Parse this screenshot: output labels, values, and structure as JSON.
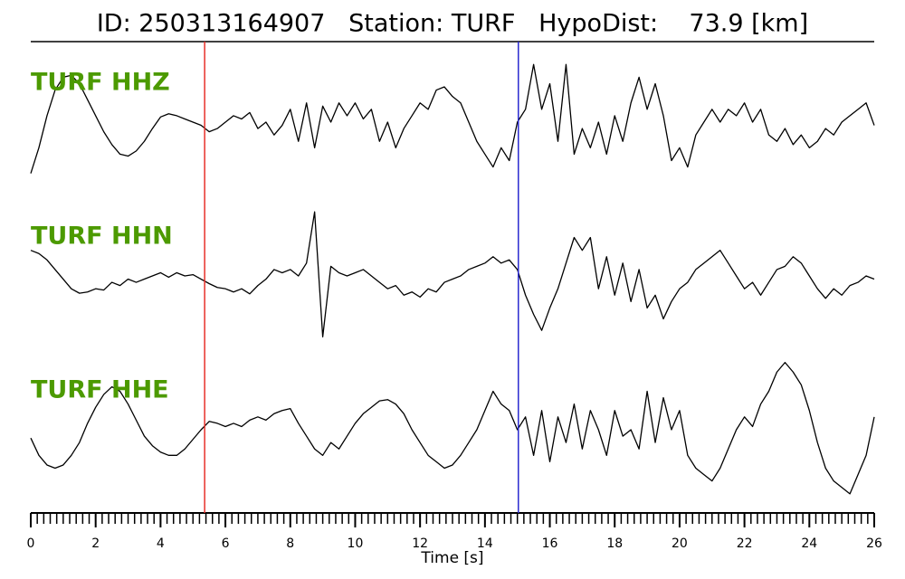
{
  "chart_data": {
    "type": "line",
    "title": "ID: 250313164907   Station: TURF   HypoDist:    73.9 [km]",
    "xlabel": "Time [s]",
    "xlim": [
      0,
      26
    ],
    "xticks": [
      0,
      2,
      4,
      6,
      8,
      10,
      12,
      14,
      16,
      18,
      20,
      22,
      24,
      26
    ],
    "xminorticks": [
      0,
      0.2,
      0.4,
      0.6,
      0.8,
      1,
      1.2,
      1.4,
      1.6,
      1.8,
      2,
      2.2,
      2.4,
      2.6,
      2.8,
      3,
      3.2,
      3.4,
      3.6,
      3.8,
      4,
      4.2,
      4.4,
      4.6,
      4.8,
      5,
      5.2,
      5.4,
      5.6,
      5.8,
      6,
      6.2,
      6.4,
      6.6,
      6.8,
      7,
      7.2,
      7.4,
      7.6,
      7.8,
      8,
      8.2,
      8.4,
      8.6,
      8.8,
      9,
      9.2,
      9.4,
      9.6,
      9.8,
      10,
      10.2,
      10.4,
      10.6,
      10.8,
      11,
      11.2,
      11.4,
      11.6,
      11.8,
      12,
      12.2,
      12.4,
      12.6,
      12.8,
      13,
      13.2,
      13.4,
      13.6,
      13.8,
      14,
      14.2,
      14.4,
      14.6,
      14.8,
      15,
      15.2,
      15.4,
      15.6,
      15.8,
      16,
      16.2,
      16.4,
      16.6,
      16.8,
      17,
      17.2,
      17.4,
      17.6,
      17.8,
      18,
      18.2,
      18.4,
      18.6,
      18.8,
      19,
      19.2,
      19.4,
      19.6,
      19.8,
      20,
      20.2,
      20.4,
      20.6,
      20.8,
      21,
      21.2,
      21.4,
      21.6,
      21.8,
      22,
      22.2,
      22.4,
      22.6,
      22.8,
      23,
      23.2,
      23.4,
      23.6,
      23.8,
      24,
      24.2,
      24.4,
      24.6,
      24.8,
      25,
      25.2,
      25.4,
      25.6,
      25.8,
      26
    ],
    "ylim": [
      -1.2,
      1.2
    ],
    "label_color": "#4c9a00",
    "markers": [
      {
        "x": 5.36,
        "color": "#e8302a"
      },
      {
        "x": 15.03,
        "color": "#2a2ad0"
      }
    ],
    "x": [
      0,
      0.25,
      0.5,
      0.75,
      1,
      1.25,
      1.5,
      1.75,
      2,
      2.25,
      2.5,
      2.75,
      3,
      3.25,
      3.5,
      3.75,
      4,
      4.25,
      4.5,
      4.75,
      5,
      5.25,
      5.5,
      5.75,
      6,
      6.25,
      6.5,
      6.75,
      7,
      7.25,
      7.5,
      7.75,
      8,
      8.25,
      8.5,
      8.75,
      9,
      9.25,
      9.5,
      9.75,
      10,
      10.25,
      10.5,
      10.75,
      11,
      11.25,
      11.5,
      11.75,
      12,
      12.25,
      12.5,
      12.75,
      13,
      13.25,
      13.5,
      13.75,
      14,
      14.25,
      14.5,
      14.75,
      15,
      15.25,
      15.5,
      15.75,
      16,
      16.25,
      16.5,
      16.75,
      17,
      17.25,
      17.5,
      17.75,
      18,
      18.25,
      18.5,
      18.75,
      19,
      19.25,
      19.5,
      19.75,
      20,
      20.25,
      20.5,
      20.75,
      21,
      21.25,
      21.5,
      21.75,
      22,
      22.25,
      22.5,
      22.75,
      23,
      23.25,
      23.5,
      23.75,
      24,
      24.25,
      24.5,
      24.75,
      25,
      25.25,
      25.5,
      25.75,
      26
    ],
    "series": [
      {
        "name": "TURF HHZ",
        "color": "#000000",
        "values": [
          -0.8,
          -0.4,
          0.1,
          0.5,
          0.7,
          0.73,
          0.6,
          0.35,
          0.1,
          -0.15,
          -0.35,
          -0.5,
          -0.53,
          -0.45,
          -0.3,
          -0.1,
          0.08,
          0.13,
          0.1,
          0.05,
          0,
          -0.05,
          -0.15,
          -0.1,
          0,
          0.1,
          0.05,
          0.15,
          -0.1,
          0,
          -0.2,
          -0.05,
          0.2,
          -0.3,
          0.3,
          -0.4,
          0.25,
          0,
          0.3,
          0.1,
          0.3,
          0.05,
          0.2,
          -0.3,
          0,
          -0.4,
          -0.1,
          0.1,
          0.3,
          0.2,
          0.5,
          0.55,
          0.4,
          0.3,
          0,
          -0.3,
          -0.5,
          -0.7,
          -0.4,
          -0.6,
          0,
          0.2,
          0.9,
          0.2,
          0.6,
          -0.3,
          0.9,
          -0.5,
          -0.1,
          -0.4,
          0,
          -0.5,
          0.1,
          -0.3,
          0.3,
          0.7,
          0.2,
          0.6,
          0.1,
          -0.6,
          -0.4,
          -0.7,
          -0.2,
          0,
          0.2,
          0,
          0.2,
          0.1,
          0.3,
          0,
          0.2,
          -0.2,
          -0.3,
          -0.1,
          -0.35,
          -0.2,
          -0.4,
          -0.3,
          -0.1,
          -0.2,
          0,
          0.1,
          0.2,
          0.3,
          -0.05
        ]
      },
      {
        "name": "TURF HHN",
        "color": "#000000",
        "values": [
          0.4,
          0.35,
          0.25,
          0.1,
          -0.05,
          -0.2,
          -0.27,
          -0.25,
          -0.2,
          -0.22,
          -0.1,
          -0.15,
          -0.05,
          -0.1,
          -0.05,
          0,
          0.05,
          -0.02,
          0.05,
          0,
          0.02,
          -0.05,
          -0.12,
          -0.18,
          -0.2,
          -0.25,
          -0.2,
          -0.28,
          -0.15,
          -0.05,
          0.1,
          0.05,
          0.1,
          0,
          0.2,
          1,
          -0.95,
          0.15,
          0.05,
          0,
          0.05,
          0.1,
          0,
          -0.1,
          -0.2,
          -0.15,
          -0.3,
          -0.25,
          -0.33,
          -0.2,
          -0.25,
          -0.1,
          -0.05,
          0,
          0.1,
          0.15,
          0.2,
          0.3,
          0.2,
          0.25,
          0.1,
          -0.3,
          -0.6,
          -0.85,
          -0.5,
          -0.2,
          0.2,
          0.6,
          0.4,
          0.6,
          -0.2,
          0.3,
          -0.3,
          0.2,
          -0.4,
          0.1,
          -0.5,
          -0.3,
          -0.67,
          -0.4,
          -0.2,
          -0.1,
          0.1,
          0.2,
          0.3,
          0.4,
          0.2,
          0,
          -0.2,
          -0.1,
          -0.3,
          -0.1,
          0.1,
          0.15,
          0.3,
          0.2,
          0,
          -0.2,
          -0.35,
          -0.2,
          -0.3,
          -0.15,
          -0.1,
          0,
          -0.05
        ]
      },
      {
        "name": "TURF HHE",
        "color": "#000000",
        "values": [
          -0.13,
          -0.4,
          -0.55,
          -0.6,
          -0.55,
          -0.4,
          -0.2,
          0.1,
          0.35,
          0.55,
          0.67,
          0.6,
          0.4,
          0.15,
          -0.1,
          -0.25,
          -0.35,
          -0.4,
          -0.4,
          -0.3,
          -0.15,
          0,
          0.13,
          0.1,
          0.05,
          0.1,
          0.05,
          0.15,
          0.2,
          0.15,
          0.25,
          0.3,
          0.33,
          0.1,
          -0.1,
          -0.3,
          -0.4,
          -0.2,
          -0.3,
          -0.1,
          0.1,
          0.25,
          0.35,
          0.45,
          0.47,
          0.4,
          0.25,
          0,
          -0.2,
          -0.4,
          -0.5,
          -0.6,
          -0.55,
          -0.4,
          -0.2,
          0,
          0.3,
          0.6,
          0.4,
          0.3,
          0,
          0.2,
          -0.4,
          0.3,
          -0.5,
          0.2,
          -0.2,
          0.4,
          -0.3,
          0.3,
          0,
          -0.4,
          0.3,
          -0.1,
          0,
          -0.3,
          0.6,
          -0.2,
          0.5,
          0,
          0.3,
          -0.4,
          -0.6,
          -0.7,
          -0.8,
          -0.6,
          -0.3,
          0,
          0.2,
          0.05,
          0.4,
          0.6,
          0.9,
          1.05,
          0.9,
          0.7,
          0.3,
          -0.2,
          -0.6,
          -0.8,
          -0.9,
          -1,
          -0.7,
          -0.4,
          0.2
        ]
      }
    ]
  }
}
